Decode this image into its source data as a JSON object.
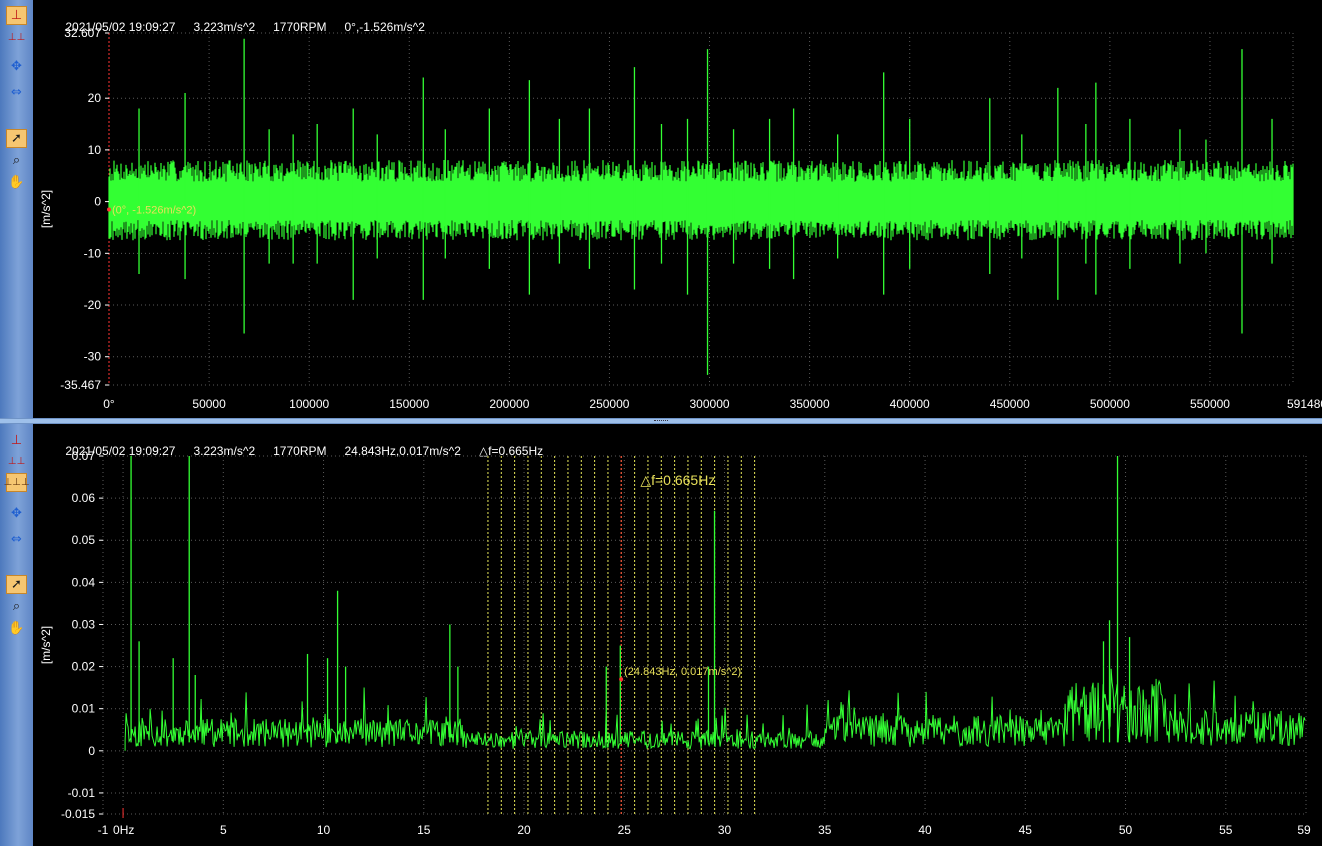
{
  "top_panel": {
    "status": {
      "datetime": "2021/05/02 19:09:27",
      "overall": "3.223m/s^2",
      "rpm": "1770RPM",
      "cursor": "0°,-1.526m/s^2"
    },
    "toolbar": [
      "single-cursor-icon",
      "multi-cursor-icon",
      "zoom-both-icon",
      "zoom-axis-icon",
      "pointer-icon",
      "magnify-icon",
      "pan-hand-icon"
    ],
    "active_tool": "single-cursor-icon",
    "cursor_label": "(0°, -1.526m/s^2)"
  },
  "bottom_panel": {
    "status": {
      "datetime": "2021/05/02 19:09:27",
      "overall": "3.223m/s^2",
      "rpm": "1770RPM",
      "cursor": "24.843Hz,0.017m/s^2",
      "delta": "△f=0.665Hz"
    },
    "toolbar": [
      "single-cursor-icon",
      "multi-cursor-icon",
      "harmonic-cursor-icon",
      "zoom-both-icon",
      "zoom-axis-icon",
      "pointer-icon",
      "magnify-icon",
      "pan-hand-icon"
    ],
    "active_tool": "harmonic-cursor-icon",
    "cursor_label": "(24.843Hz, 0.017m/s^2)",
    "delta_label": "△f=0.665Hz"
  },
  "colors": {
    "background": "#000000",
    "trace": "#33ff33",
    "grid": "#5a5a5a",
    "cursor": "#ff3333",
    "sideband": "#e8e85a",
    "annotation": "#e8e05a",
    "toolbar": "#6a8fcc",
    "active_tool": "#f6c671"
  },
  "chart_data": [
    {
      "type": "line",
      "ylabel": "[m/s^2]",
      "xlim": [
        0,
        591480
      ],
      "ylim": [
        -35.467,
        32.607
      ],
      "x_ticks": [
        "0°",
        "50000",
        "100000",
        "150000",
        "200000",
        "250000",
        "300000",
        "350000",
        "400000",
        "450000",
        "500000",
        "550000",
        "591480"
      ],
      "x_tick_values": [
        0,
        50000,
        100000,
        150000,
        200000,
        250000,
        300000,
        350000,
        400000,
        450000,
        500000,
        550000,
        591480
      ],
      "y_ticks": [
        "32.607",
        "20",
        "10",
        "0",
        "-10",
        "-20",
        "-30",
        "-35.467"
      ],
      "y_tick_values": [
        32.607,
        20,
        10,
        0,
        -10,
        -20,
        -30,
        -35.467
      ],
      "grid": true,
      "band": {
        "positive": 7,
        "negative": -6.5
      },
      "spikes": [
        {
          "x": 15000,
          "max": 18,
          "min": -14
        },
        {
          "x": 38000,
          "max": 21,
          "min": -15
        },
        {
          "x": 67500,
          "max": 31.5,
          "min": -25.5
        },
        {
          "x": 80000,
          "max": 14,
          "min": -12
        },
        {
          "x": 92000,
          "max": 13,
          "min": -12
        },
        {
          "x": 104000,
          "max": 15,
          "min": -12
        },
        {
          "x": 122000,
          "max": 18,
          "min": -19
        },
        {
          "x": 134000,
          "max": 13,
          "min": -11
        },
        {
          "x": 157000,
          "max": 24,
          "min": -19
        },
        {
          "x": 168000,
          "max": 14,
          "min": -11
        },
        {
          "x": 190000,
          "max": 18,
          "min": -13
        },
        {
          "x": 210000,
          "max": 23.5,
          "min": -18
        },
        {
          "x": 225000,
          "max": 16,
          "min": -12
        },
        {
          "x": 240000,
          "max": 18,
          "min": -13
        },
        {
          "x": 262500,
          "max": 26,
          "min": -17
        },
        {
          "x": 276000,
          "max": 15,
          "min": -12
        },
        {
          "x": 289000,
          "max": 16,
          "min": -18
        },
        {
          "x": 299000,
          "max": 29.5,
          "min": -33.5
        },
        {
          "x": 312000,
          "max": 14,
          "min": -12
        },
        {
          "x": 330000,
          "max": 16,
          "min": -13
        },
        {
          "x": 342000,
          "max": 18,
          "min": -15
        },
        {
          "x": 364000,
          "max": 13,
          "min": -11
        },
        {
          "x": 387000,
          "max": 25,
          "min": -18
        },
        {
          "x": 400000,
          "max": 16,
          "min": -13
        },
        {
          "x": 440000,
          "max": 20,
          "min": -14
        },
        {
          "x": 456000,
          "max": 13,
          "min": -11
        },
        {
          "x": 474000,
          "max": 22,
          "min": -19
        },
        {
          "x": 488000,
          "max": 15,
          "min": -12
        },
        {
          "x": 493000,
          "max": 23,
          "min": -18
        },
        {
          "x": 510000,
          "max": 16,
          "min": -13
        },
        {
          "x": 535000,
          "max": 14,
          "min": -12
        },
        {
          "x": 548000,
          "max": 12,
          "min": -10
        },
        {
          "x": 566000,
          "max": 29.5,
          "min": -25.5
        },
        {
          "x": 581000,
          "max": 16,
          "min": -12
        }
      ],
      "cursor": {
        "x": 0,
        "y": -1.526
      }
    },
    {
      "type": "line",
      "ylabel": "[m/s^2]",
      "xlim": [
        -1,
        59
      ],
      "ylim": [
        -0.015,
        0.07
      ],
      "x_ticks": [
        "-1",
        "0Hz",
        "5",
        "10",
        "15",
        "20",
        "25",
        "30",
        "35",
        "40",
        "45",
        "50",
        "55",
        "59"
      ],
      "x_tick_values": [
        -1,
        0,
        5,
        10,
        15,
        20,
        25,
        30,
        35,
        40,
        45,
        50,
        55,
        59
      ],
      "y_ticks": [
        "0.07",
        "0.06",
        "0.05",
        "0.04",
        "0.03",
        "0.02",
        "0.01",
        "0",
        "-0.01",
        "-0.015"
      ],
      "y_tick_values": [
        0.07,
        0.06,
        0.05,
        0.04,
        0.03,
        0.02,
        0.01,
        0,
        -0.01,
        -0.015
      ],
      "grid": true,
      "peaks": [
        {
          "x": 0.4,
          "y": 0.07
        },
        {
          "x": 0.8,
          "y": 0.026
        },
        {
          "x": 2.5,
          "y": 0.022
        },
        {
          "x": 3.3,
          "y": 0.07
        },
        {
          "x": 3.6,
          "y": 0.018
        },
        {
          "x": 9.2,
          "y": 0.023
        },
        {
          "x": 10.2,
          "y": 0.022
        },
        {
          "x": 10.7,
          "y": 0.038
        },
        {
          "x": 11.1,
          "y": 0.02
        },
        {
          "x": 16.3,
          "y": 0.03
        },
        {
          "x": 16.7,
          "y": 0.02
        },
        {
          "x": 24.1,
          "y": 0.02
        },
        {
          "x": 24.8,
          "y": 0.025
        },
        {
          "x": 29.5,
          "y": 0.057
        },
        {
          "x": 29.2,
          "y": 0.02
        },
        {
          "x": 49.6,
          "y": 0.07
        },
        {
          "x": 49.2,
          "y": 0.031
        },
        {
          "x": 50.2,
          "y": 0.027
        },
        {
          "x": 48.9,
          "y": 0.026
        }
      ],
      "sideband_lines": {
        "start": 18.2,
        "step": 0.665,
        "count": 21
      },
      "cursor": {
        "x": 24.843,
        "y": 0.017
      }
    }
  ]
}
